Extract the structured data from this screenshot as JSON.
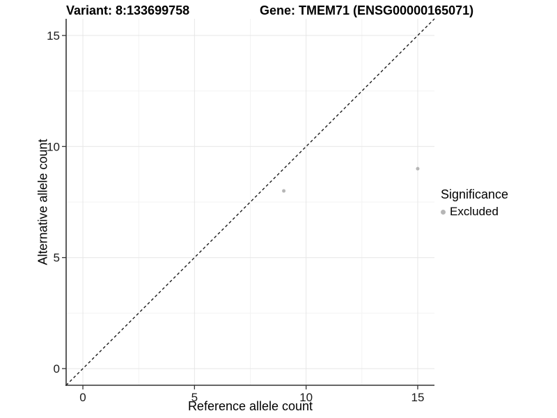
{
  "title": {
    "variant": "Variant: 8:133699758",
    "gene": "Gene: TMEM71 (ENSG00000165071)"
  },
  "axes": {
    "x_label": "Reference allele count",
    "y_label": "Alternative allele count"
  },
  "legend": {
    "title": "Significance",
    "items": [
      {
        "label": "Excluded",
        "color": "#b6b6b6"
      }
    ]
  },
  "colors": {
    "point": "#b6b6b6",
    "grid_major": "#e6e6e6",
    "grid_minor": "#f3f3f3",
    "axis": "#333333",
    "dashed_line": "#1a1a1a",
    "text": "#1a1a1a"
  },
  "chart_data": {
    "type": "scatter",
    "title": "Variant: 8:133699758 — Gene: TMEM71 (ENSG00000165071)",
    "xlabel": "Reference allele count",
    "ylabel": "Alternative allele count",
    "xlim": [
      -0.75,
      15.75
    ],
    "ylim": [
      -0.75,
      15.75
    ],
    "x_ticks": [
      0,
      5,
      10,
      15
    ],
    "y_ticks": [
      0,
      5,
      10,
      15
    ],
    "x_minor": [
      2.5,
      7.5,
      12.5
    ],
    "y_minor": [
      2.5,
      7.5,
      12.5
    ],
    "grid": "major+minor",
    "legend_position": "right",
    "reference_line": {
      "type": "identity",
      "style": "dashed",
      "from": -0.75,
      "to": 15.75
    },
    "series": [
      {
        "name": "Excluded",
        "color": "#b6b6b6",
        "points": [
          {
            "x": 9,
            "y": 8
          },
          {
            "x": 15,
            "y": 9
          }
        ]
      }
    ]
  }
}
